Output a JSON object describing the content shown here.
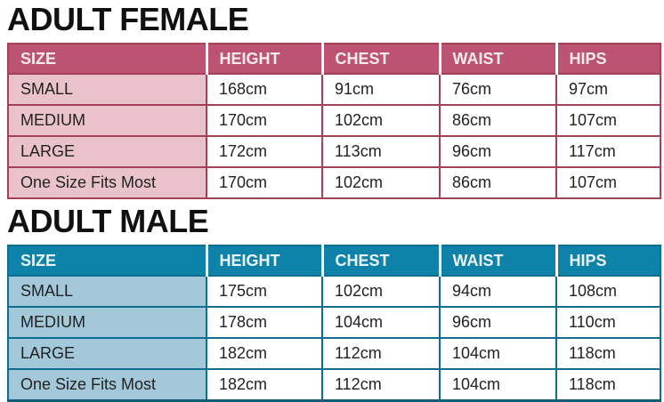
{
  "chart_data": [
    {
      "type": "table",
      "title": "ADULT FEMALE",
      "columns": [
        "SIZE",
        "HEIGHT",
        "CHEST",
        "WAIST",
        "HIPS"
      ],
      "rows": [
        [
          "SMALL",
          "168cm",
          "91cm",
          "76cm",
          "97cm"
        ],
        [
          "MEDIUM",
          "170cm",
          "102cm",
          "86cm",
          "107cm"
        ],
        [
          "LARGE",
          "172cm",
          "113cm",
          "96cm",
          "117cm"
        ],
        [
          "One Size Fits Most",
          "170cm",
          "102cm",
          "86cm",
          "107cm"
        ]
      ],
      "colors": {
        "header_bg": "#bd5372",
        "header_text": "#f7ebef",
        "row_label_bg": "#e9c2cc",
        "border": "#a34159",
        "cell_bg": "#ffffff",
        "cell_text": "#222222",
        "title_text": "#111111"
      }
    },
    {
      "type": "table",
      "title": "ADULT MALE",
      "columns": [
        "SIZE",
        "HEIGHT",
        "CHEST",
        "WAIST",
        "HIPS"
      ],
      "rows": [
        [
          "SMALL",
          "175cm",
          "102cm",
          "94cm",
          "108cm"
        ],
        [
          "MEDIUM",
          "178cm",
          "104cm",
          "96cm",
          "110cm"
        ],
        [
          "LARGE",
          "182cm",
          "112cm",
          "104cm",
          "118cm"
        ],
        [
          "One Size Fits Most",
          "182cm",
          "112cm",
          "104cm",
          "118cm"
        ]
      ],
      "colors": {
        "header_bg": "#0e82a9",
        "header_text": "#eaf4f8",
        "row_label_bg": "#a3c8da",
        "border": "#0d6e90",
        "outer_bottom_border": "#115c77",
        "cell_bg": "#ffffff",
        "cell_text": "#222222",
        "title_text": "#111111"
      }
    }
  ]
}
